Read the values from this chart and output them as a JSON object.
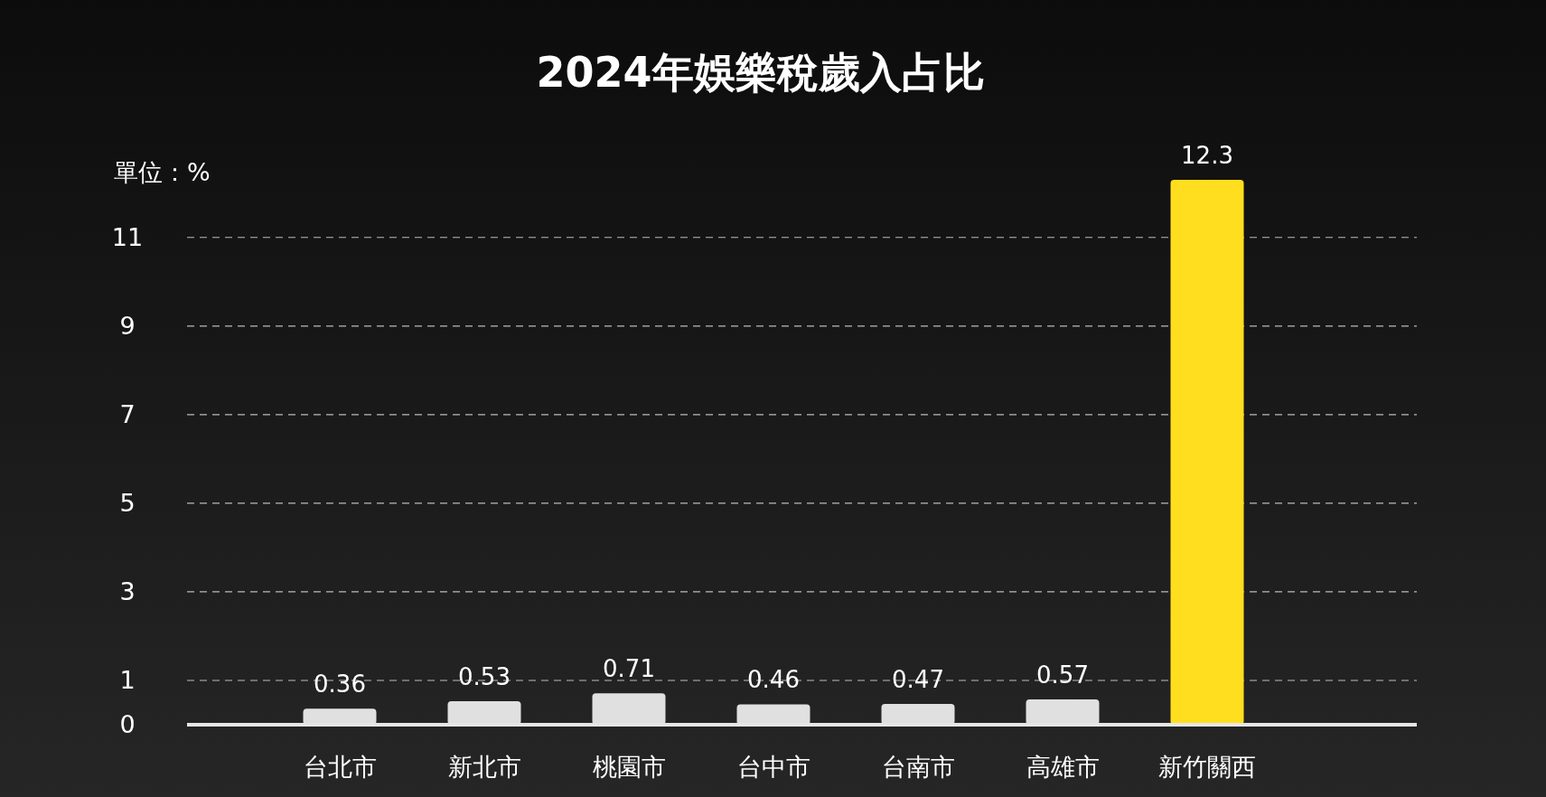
{
  "chart_data": {
    "type": "bar",
    "title": "2024年娛樂稅歲入占比",
    "ylabel": "單位：%",
    "categories": [
      "台北市",
      "新北市",
      "桃園市",
      "台中市",
      "台南市",
      "高雄市",
      "新竹關西"
    ],
    "values": [
      0.36,
      0.53,
      0.71,
      0.46,
      0.47,
      0.57,
      12.3
    ],
    "colors": [
      "#e0e0e0",
      "#e0e0e0",
      "#e0e0e0",
      "#e0e0e0",
      "#e0e0e0",
      "#e0e0e0",
      "#ffde1f"
    ],
    "ylim": [
      0,
      12.3
    ],
    "yticks": [
      0,
      1,
      3,
      5,
      7,
      9,
      11
    ],
    "grid": "y",
    "data_labels": true
  }
}
